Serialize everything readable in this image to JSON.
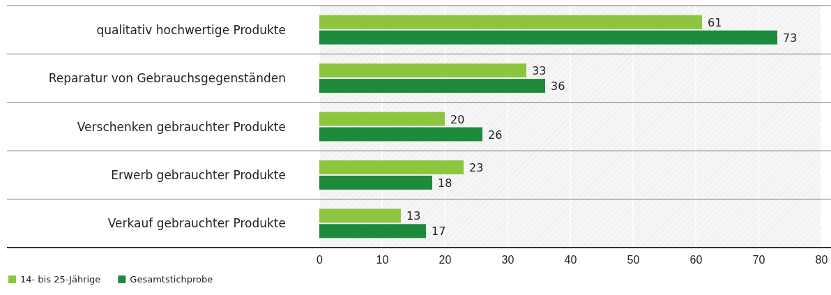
{
  "chart_data": {
    "type": "bar",
    "orientation": "horizontal",
    "categories": [
      "qualitativ hochwertige Produkte",
      "Reparatur von Gebrauchsgegenständen",
      "Verschenken gebrauchter Produkte",
      "Erwerb gebrauchter Produkte",
      "Verkauf gebrauchter Produkte"
    ],
    "series": [
      {
        "name": "14- bis 25-Jährige",
        "color": "#8cc63f",
        "values": [
          61,
          33,
          20,
          23,
          13
        ]
      },
      {
        "name": "Gesamtstichprobe",
        "color": "#1e8a3c",
        "values": [
          73,
          36,
          26,
          18,
          17
        ]
      }
    ],
    "xlim": [
      0,
      80
    ],
    "xticks": [
      0,
      10,
      20,
      30,
      40,
      50,
      60,
      70,
      80
    ],
    "grid": "x",
    "legend": "bottom left",
    "data_labels": true
  }
}
